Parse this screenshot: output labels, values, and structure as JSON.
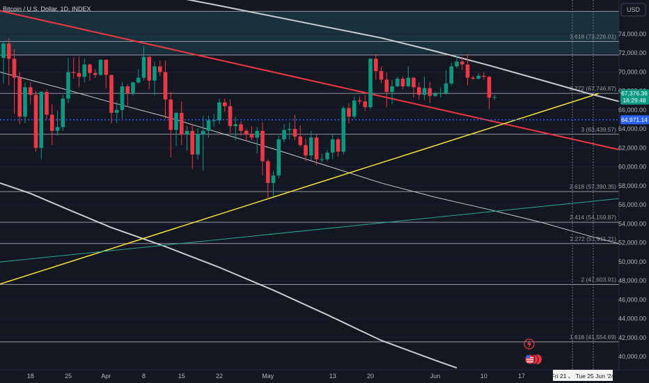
{
  "header": {
    "symbol_title": "Bitcoin / U.S. Dollar, 1D, INDEX"
  },
  "currency_button": {
    "label": "USD"
  },
  "price_tags": {
    "last_price": "67,376.36",
    "countdown": "16:29:48",
    "horizontal_line_price": "64,971.14"
  },
  "date_range_label": "Fri 21 、 Tue 25 Jun '24",
  "colors": {
    "background": "#131722",
    "up": "#089981",
    "down": "#f23645",
    "red_trendline": "#f23645",
    "yellow_trendline": "#f5e43a",
    "green_trendline": "#22ab94",
    "grey_curves": "#c9ccd3",
    "blue_dotted": "#2962ff",
    "fib_zone": "#1b3f4b"
  },
  "icons": [
    "lightning-icon",
    "us-flag-event-icon"
  ],
  "chart_data": {
    "type": "candlestick",
    "title": "Bitcoin / U.S. Dollar, 1D, INDEX",
    "x_tick_labels": [
      "18",
      "25",
      "Apr",
      "8",
      "15",
      "22",
      "May",
      "13",
      "20",
      "Jun",
      "10",
      "17"
    ],
    "y_tick_labels": [
      "74,000.00",
      "72,000.00",
      "70,000.00",
      "68,000.00",
      "66,000.00",
      "64,000.00",
      "62,000.00",
      "60,000.00",
      "58,000.00",
      "56,000.00",
      "54,000.00",
      "52,000.00",
      "50,000.00",
      "48,000.00",
      "46,000.00",
      "44,000.00",
      "42,000.00",
      "40,000.00"
    ],
    "ylim": [
      39500,
      78000
    ],
    "fib_levels": [
      {
        "label": "3.618 (73,226.01)",
        "value": 73226.01
      },
      {
        "label": "3.272 (67,746.87)",
        "value": 67746.87
      },
      {
        "label": "3 (63,439.57)",
        "value": 63439.57
      },
      {
        "label": "2.618 (57,390.35)",
        "value": 57390.35
      },
      {
        "label": "2.414 (54,159.87)",
        "value": 54159.87
      },
      {
        "label": "2.272 (51,911.21)",
        "value": 51911.21
      },
      {
        "label": "2 (47,603.91)",
        "value": 47603.91
      },
      {
        "label": "1.618 (41,554.69)",
        "value": 41554.69
      }
    ],
    "extra_levels": [
      71800,
      76400
    ],
    "last_price": 67376.36,
    "horizontal_line": 64971.14,
    "candles": [
      {
        "date": "2024-03-13",
        "o": 71500,
        "h": 73200,
        "l": 68800,
        "c": 73000
      },
      {
        "date": "2024-03-14",
        "o": 73000,
        "h": 73600,
        "l": 68600,
        "c": 71400
      },
      {
        "date": "2024-03-15",
        "o": 71400,
        "h": 72400,
        "l": 65600,
        "c": 69400
      },
      {
        "date": "2024-03-16",
        "o": 69400,
        "h": 70000,
        "l": 64500,
        "c": 65300
      },
      {
        "date": "2024-03-17",
        "o": 65300,
        "h": 68900,
        "l": 64600,
        "c": 68400
      },
      {
        "date": "2024-03-18",
        "o": 68400,
        "h": 68900,
        "l": 66600,
        "c": 67600
      },
      {
        "date": "2024-03-19",
        "o": 67600,
        "h": 68000,
        "l": 61600,
        "c": 62000
      },
      {
        "date": "2024-03-20",
        "o": 62000,
        "h": 68000,
        "l": 60800,
        "c": 67900
      },
      {
        "date": "2024-03-21",
        "o": 67900,
        "h": 68200,
        "l": 65000,
        "c": 65500
      },
      {
        "date": "2024-03-22",
        "o": 65500,
        "h": 66600,
        "l": 62300,
        "c": 63800
      },
      {
        "date": "2024-03-23",
        "o": 63800,
        "h": 65900,
        "l": 63300,
        "c": 64200
      },
      {
        "date": "2024-03-24",
        "o": 64200,
        "h": 67600,
        "l": 63800,
        "c": 67200
      },
      {
        "date": "2024-03-25",
        "o": 67200,
        "h": 71500,
        "l": 66700,
        "c": 70000
      },
      {
        "date": "2024-03-26",
        "o": 70000,
        "h": 71500,
        "l": 69300,
        "c": 69900
      },
      {
        "date": "2024-03-27",
        "o": 69900,
        "h": 71600,
        "l": 68400,
        "c": 69500
      },
      {
        "date": "2024-03-28",
        "o": 69500,
        "h": 71400,
        "l": 68900,
        "c": 70800
      },
      {
        "date": "2024-03-29",
        "o": 70800,
        "h": 70900,
        "l": 69100,
        "c": 69900
      },
      {
        "date": "2024-03-30",
        "o": 69900,
        "h": 70300,
        "l": 69400,
        "c": 69700
      },
      {
        "date": "2024-03-31",
        "o": 69700,
        "h": 71300,
        "l": 69600,
        "c": 71300
      },
      {
        "date": "2024-04-01",
        "o": 71300,
        "h": 71300,
        "l": 68300,
        "c": 69700
      },
      {
        "date": "2024-04-02",
        "o": 69700,
        "h": 69700,
        "l": 64600,
        "c": 65700
      },
      {
        "date": "2024-04-03",
        "o": 65700,
        "h": 66900,
        "l": 64600,
        "c": 66000
      },
      {
        "date": "2024-04-04",
        "o": 66000,
        "h": 69000,
        "l": 65100,
        "c": 68500
      },
      {
        "date": "2024-04-05",
        "o": 68500,
        "h": 68700,
        "l": 66300,
        "c": 67800
      },
      {
        "date": "2024-04-06",
        "o": 67800,
        "h": 69000,
        "l": 67500,
        "c": 68900
      },
      {
        "date": "2024-04-07",
        "o": 68900,
        "h": 70300,
        "l": 68800,
        "c": 69400
      },
      {
        "date": "2024-04-08",
        "o": 69400,
        "h": 72700,
        "l": 69100,
        "c": 71600
      },
      {
        "date": "2024-04-09",
        "o": 71600,
        "h": 71700,
        "l": 68200,
        "c": 69100
      },
      {
        "date": "2024-04-10",
        "o": 69100,
        "h": 71100,
        "l": 67500,
        "c": 70600
      },
      {
        "date": "2024-04-11",
        "o": 70600,
        "h": 71200,
        "l": 69600,
        "c": 70000
      },
      {
        "date": "2024-04-12",
        "o": 70000,
        "h": 71200,
        "l": 65100,
        "c": 67100
      },
      {
        "date": "2024-04-13",
        "o": 67100,
        "h": 67900,
        "l": 61000,
        "c": 63900
      },
      {
        "date": "2024-04-14",
        "o": 63900,
        "h": 65800,
        "l": 62200,
        "c": 65700
      },
      {
        "date": "2024-04-15",
        "o": 65700,
        "h": 66900,
        "l": 62300,
        "c": 63400
      },
      {
        "date": "2024-04-16",
        "o": 63400,
        "h": 64300,
        "l": 61700,
        "c": 63800
      },
      {
        "date": "2024-04-17",
        "o": 63800,
        "h": 64500,
        "l": 59800,
        "c": 61300
      },
      {
        "date": "2024-04-18",
        "o": 61300,
        "h": 64100,
        "l": 60800,
        "c": 63500
      },
      {
        "date": "2024-04-19",
        "o": 63500,
        "h": 65400,
        "l": 59600,
        "c": 63800
      },
      {
        "date": "2024-04-20",
        "o": 63800,
        "h": 65400,
        "l": 63100,
        "c": 64900
      },
      {
        "date": "2024-04-21",
        "o": 64900,
        "h": 65600,
        "l": 64200,
        "c": 64900
      },
      {
        "date": "2024-04-22",
        "o": 64900,
        "h": 67200,
        "l": 64500,
        "c": 66800
      },
      {
        "date": "2024-04-23",
        "o": 66800,
        "h": 67200,
        "l": 65800,
        "c": 66400
      },
      {
        "date": "2024-04-24",
        "o": 66400,
        "h": 67100,
        "l": 63600,
        "c": 64300
      },
      {
        "date": "2024-04-25",
        "o": 64300,
        "h": 65300,
        "l": 62800,
        "c": 64500
      },
      {
        "date": "2024-04-26",
        "o": 64500,
        "h": 64800,
        "l": 63300,
        "c": 63800
      },
      {
        "date": "2024-04-27",
        "o": 63800,
        "h": 64000,
        "l": 62800,
        "c": 63400
      },
      {
        "date": "2024-04-28",
        "o": 63400,
        "h": 64300,
        "l": 62800,
        "c": 63100
      },
      {
        "date": "2024-04-29",
        "o": 63100,
        "h": 64200,
        "l": 61400,
        "c": 63800
      },
      {
        "date": "2024-04-30",
        "o": 63800,
        "h": 64700,
        "l": 59100,
        "c": 60600
      },
      {
        "date": "2024-05-01",
        "o": 60600,
        "h": 60800,
        "l": 56600,
        "c": 58300
      },
      {
        "date": "2024-05-02",
        "o": 58300,
        "h": 59600,
        "l": 56900,
        "c": 59100
      },
      {
        "date": "2024-05-03",
        "o": 59100,
        "h": 63300,
        "l": 58800,
        "c": 62900
      },
      {
        "date": "2024-05-04",
        "o": 62900,
        "h": 64500,
        "l": 62600,
        "c": 63900
      },
      {
        "date": "2024-05-05",
        "o": 63900,
        "h": 64700,
        "l": 62900,
        "c": 64000
      },
      {
        "date": "2024-05-06",
        "o": 64000,
        "h": 65500,
        "l": 62800,
        "c": 63200
      },
      {
        "date": "2024-05-07",
        "o": 63200,
        "h": 64400,
        "l": 62100,
        "c": 62300
      },
      {
        "date": "2024-05-08",
        "o": 62300,
        "h": 63000,
        "l": 60600,
        "c": 61200
      },
      {
        "date": "2024-05-09",
        "o": 61200,
        "h": 63800,
        "l": 60700,
        "c": 63100
      },
      {
        "date": "2024-05-10",
        "o": 63100,
        "h": 63400,
        "l": 60200,
        "c": 60800
      },
      {
        "date": "2024-05-11",
        "o": 60800,
        "h": 61400,
        "l": 60500,
        "c": 60800
      },
      {
        "date": "2024-05-12",
        "o": 60800,
        "h": 61800,
        "l": 60600,
        "c": 61500
      },
      {
        "date": "2024-05-13",
        "o": 61500,
        "h": 63400,
        "l": 60800,
        "c": 62900
      },
      {
        "date": "2024-05-14",
        "o": 62900,
        "h": 63100,
        "l": 61100,
        "c": 61600
      },
      {
        "date": "2024-05-15",
        "o": 61600,
        "h": 66400,
        "l": 61300,
        "c": 66200
      },
      {
        "date": "2024-05-16",
        "o": 66200,
        "h": 66700,
        "l": 64600,
        "c": 65300
      },
      {
        "date": "2024-05-17",
        "o": 65300,
        "h": 67400,
        "l": 65100,
        "c": 67000
      },
      {
        "date": "2024-05-18",
        "o": 67000,
        "h": 67400,
        "l": 66600,
        "c": 66900
      },
      {
        "date": "2024-05-19",
        "o": 66900,
        "h": 67600,
        "l": 65900,
        "c": 66300
      },
      {
        "date": "2024-05-20",
        "o": 66300,
        "h": 71500,
        "l": 66100,
        "c": 71400
      },
      {
        "date": "2024-05-21",
        "o": 71400,
        "h": 71900,
        "l": 69200,
        "c": 70100
      },
      {
        "date": "2024-05-22",
        "o": 70100,
        "h": 70600,
        "l": 68800,
        "c": 69200
      },
      {
        "date": "2024-05-23",
        "o": 69200,
        "h": 70000,
        "l": 66300,
        "c": 67900
      },
      {
        "date": "2024-05-24",
        "o": 67900,
        "h": 69200,
        "l": 66600,
        "c": 68500
      },
      {
        "date": "2024-05-25",
        "o": 68500,
        "h": 69500,
        "l": 68400,
        "c": 69300
      },
      {
        "date": "2024-05-26",
        "o": 69300,
        "h": 69500,
        "l": 68200,
        "c": 68500
      },
      {
        "date": "2024-05-27",
        "o": 68500,
        "h": 70600,
        "l": 68400,
        "c": 69400
      },
      {
        "date": "2024-05-28",
        "o": 69400,
        "h": 69500,
        "l": 67300,
        "c": 68400
      },
      {
        "date": "2024-05-29",
        "o": 68400,
        "h": 68900,
        "l": 67100,
        "c": 67600
      },
      {
        "date": "2024-05-30",
        "o": 67600,
        "h": 69500,
        "l": 67100,
        "c": 68300
      },
      {
        "date": "2024-05-31",
        "o": 68300,
        "h": 69000,
        "l": 66700,
        "c": 67500
      },
      {
        "date": "2024-06-01",
        "o": 67500,
        "h": 67900,
        "l": 67400,
        "c": 67700
      },
      {
        "date": "2024-06-02",
        "o": 67700,
        "h": 68400,
        "l": 67300,
        "c": 67800
      },
      {
        "date": "2024-06-03",
        "o": 67800,
        "h": 70200,
        "l": 67600,
        "c": 68800
      },
      {
        "date": "2024-06-04",
        "o": 68800,
        "h": 71000,
        "l": 68600,
        "c": 70600
      },
      {
        "date": "2024-06-05",
        "o": 70600,
        "h": 71800,
        "l": 70400,
        "c": 71100
      },
      {
        "date": "2024-06-06",
        "o": 71100,
        "h": 71600,
        "l": 70200,
        "c": 70800
      },
      {
        "date": "2024-06-07",
        "o": 70800,
        "h": 71900,
        "l": 68600,
        "c": 69400
      },
      {
        "date": "2024-06-08",
        "o": 69400,
        "h": 69600,
        "l": 69200,
        "c": 69300
      },
      {
        "date": "2024-06-09",
        "o": 69300,
        "h": 69900,
        "l": 69200,
        "c": 69600
      },
      {
        "date": "2024-06-10",
        "o": 69600,
        "h": 70000,
        "l": 69200,
        "c": 69500
      },
      {
        "date": "2024-06-11",
        "o": 69500,
        "h": 69600,
        "l": 66100,
        "c": 67300
      },
      {
        "date": "2024-06-12",
        "o": 67300,
        "h": 67600,
        "l": 67100,
        "c": 67376.36
      }
    ]
  }
}
